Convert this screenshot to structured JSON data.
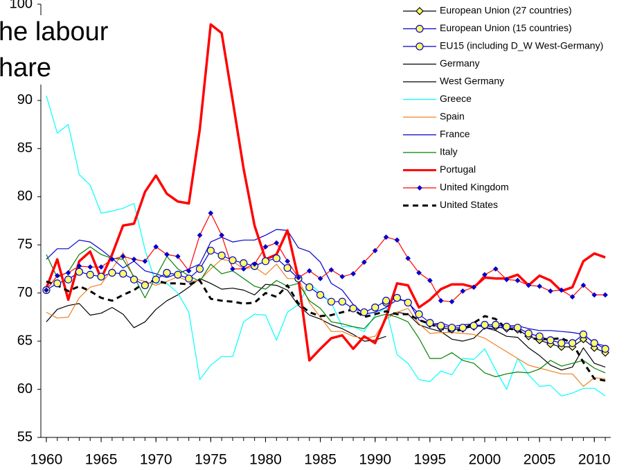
{
  "chart_data": {
    "type": "line",
    "title": [
      "he labour",
      "hare"
    ],
    "x": [
      1960,
      1961,
      1962,
      1963,
      1964,
      1965,
      1966,
      1967,
      1968,
      1969,
      1970,
      1971,
      1972,
      1973,
      1974,
      1975,
      1976,
      1977,
      1978,
      1979,
      1980,
      1981,
      1982,
      1983,
      1984,
      1985,
      1986,
      1987,
      1988,
      1989,
      1990,
      1991,
      1992,
      1993,
      1994,
      1995,
      1996,
      1997,
      1998,
      1999,
      2000,
      2001,
      2002,
      2003,
      2004,
      2005,
      2006,
      2007,
      2008,
      2009,
      2010,
      2011
    ],
    "xlim": [
      1959.5,
      2011.5
    ],
    "xticks": [
      1960,
      1965,
      1970,
      1975,
      1980,
      1985,
      1990,
      1995,
      2000,
      2005,
      2010
    ],
    "ylim": [
      55,
      100
    ],
    "yticks": [
      55,
      60,
      65,
      70,
      75,
      80,
      85,
      90,
      100
    ],
    "series": [
      {
        "name": "European Union (27 countries)",
        "color": "#000000",
        "marker": "diamond",
        "marker_color": "#ffff66",
        "values": [
          null,
          null,
          null,
          null,
          null,
          null,
          null,
          null,
          null,
          null,
          null,
          null,
          null,
          null,
          null,
          null,
          null,
          null,
          null,
          null,
          null,
          null,
          null,
          null,
          null,
          null,
          null,
          null,
          null,
          null,
          null,
          null,
          null,
          null,
          null,
          66.8,
          66.4,
          66.2,
          66.3,
          66.5,
          66.6,
          66.5,
          66.3,
          66.2,
          65.5,
          65.1,
          64.7,
          64.4,
          64.4,
          65.2,
          64.3,
          63.8
        ]
      },
      {
        "name": "European Union (15 countries)",
        "color": "#0000cc",
        "marker": "circle",
        "marker_color": "#ffff66",
        "values": [
          null,
          null,
          null,
          null,
          null,
          null,
          null,
          null,
          null,
          null,
          null,
          null,
          null,
          null,
          null,
          null,
          null,
          null,
          null,
          null,
          null,
          null,
          null,
          null,
          null,
          null,
          null,
          null,
          null,
          null,
          null,
          69,
          69.5,
          69,
          67.8,
          66.9,
          66.6,
          66.4,
          66.4,
          66.6,
          66.7,
          66.7,
          66.5,
          66.4,
          65.8,
          65.5,
          65.1,
          64.8,
          64.8,
          65.7,
          64.8,
          64.2
        ]
      },
      {
        "name": "EU15 (including D_W West-Germany)",
        "color": "#0000cc",
        "marker": "circle",
        "marker_color": "#ffff66",
        "values": [
          70.3,
          71,
          71.4,
          72.2,
          71.9,
          71.7,
          72.1,
          72,
          71.4,
          70.8,
          71.4,
          72.1,
          71.9,
          71.5,
          72.5,
          74.4,
          73.9,
          73.4,
          73.1,
          72.8,
          73.3,
          73.6,
          72.6,
          71.5,
          70.6,
          69.8,
          69.1,
          69.1,
          68.4,
          68,
          68.5,
          69.2,
          null,
          null,
          null,
          null,
          null,
          null,
          null,
          null,
          null,
          null,
          null,
          null,
          null,
          null,
          null,
          null,
          null,
          null,
          null,
          null
        ]
      },
      {
        "name": "Germany",
        "color": "#000000",
        "values": [
          null,
          null,
          null,
          null,
          null,
          null,
          null,
          null,
          null,
          null,
          null,
          null,
          null,
          null,
          null,
          null,
          null,
          null,
          null,
          null,
          null,
          null,
          null,
          null,
          null,
          null,
          null,
          null,
          null,
          null,
          null,
          67.6,
          68,
          67.8,
          66.7,
          66.3,
          66,
          65.2,
          65,
          65.3,
          66.4,
          66.1,
          65.5,
          65.4,
          64.3,
          63.5,
          62.5,
          62,
          62.3,
          64.3,
          62.7,
          62.3
        ]
      },
      {
        "name": "West Germany",
        "color": "#000000",
        "values": [
          67,
          68.3,
          68.7,
          68.9,
          67.7,
          67.9,
          68.5,
          67.8,
          66.4,
          67,
          68.3,
          69.2,
          69.8,
          70.6,
          71.5,
          71,
          70.4,
          70.5,
          70.3,
          69.8,
          70.9,
          70.8,
          70.3,
          68.7,
          67.7,
          67.3,
          66.7,
          66.3,
          65.7,
          65,
          65.1,
          65.5,
          null,
          null,
          null,
          null,
          null,
          null,
          null,
          null,
          null,
          null,
          null,
          null,
          null,
          null,
          null,
          null,
          null,
          null,
          null,
          null
        ]
      },
      {
        "name": "Greece",
        "color": "#00ffff",
        "values": [
          90.5,
          86.6,
          87.5,
          82.3,
          81.2,
          78.3,
          78.5,
          78.8,
          79.3,
          74.5,
          71,
          71,
          70,
          68,
          61,
          62.5,
          63.4,
          63.4,
          67,
          67.8,
          67.7,
          65.1,
          68,
          68.8,
          71,
          70,
          69,
          66.5,
          66.5,
          66,
          67.7,
          68.5,
          63.6,
          62.7,
          61,
          60.8,
          61.9,
          61.5,
          63.2,
          63.1,
          64.2,
          62,
          60,
          63.2,
          61.5,
          60.3,
          60.4,
          59.3,
          59.6,
          60.1,
          60.1,
          59.3
        ]
      },
      {
        "name": "Spain",
        "color": "#f08020",
        "values": [
          68,
          67.4,
          67.5,
          69.5,
          70.6,
          70.9,
          72.5,
          74.2,
          71.5,
          71.2,
          70.8,
          71.2,
          71.7,
          71.2,
          71.3,
          72.5,
          73.5,
          73.3,
          72.5,
          72.7,
          71.9,
          73,
          71.5,
          71.5,
          69,
          67.5,
          66,
          66,
          65.5,
          65.3,
          65.5,
          67.3,
          68,
          68.4,
          66.8,
          65.8,
          65.9,
          65.9,
          65.8,
          65.7,
          65.3,
          64.6,
          63.9,
          63.2,
          62.5,
          62.2,
          61.9,
          61.6,
          61.6,
          60.3,
          61.2,
          61.1
        ]
      },
      {
        "name": "France",
        "color": "#0000cc",
        "values": [
          73.5,
          74.6,
          74.6,
          75.5,
          75.3,
          74.5,
          73.6,
          72.6,
          73.3,
          72.3,
          72,
          71.6,
          72,
          72.5,
          73,
          75.3,
          75.8,
          75.3,
          75.5,
          75.5,
          76,
          76.6,
          76.5,
          74.7,
          74.3,
          73.2,
          71,
          70.3,
          68.8,
          67.8,
          68,
          68.5,
          69.3,
          69.2,
          67.2,
          66.7,
          66.9,
          66.5,
          66.7,
          66.8,
          66.4,
          66.3,
          66.6,
          66.6,
          66.3,
          66.1,
          66.1,
          66,
          65.9,
          65.7,
          64.8,
          64.5
        ]
      },
      {
        "name": "Italy",
        "color": "#008000",
        "values": [
          74,
          71.6,
          72.2,
          74,
          74.8,
          74,
          73.6,
          73.5,
          71.7,
          69.5,
          71.7,
          73.8,
          72.5,
          71.8,
          71.2,
          73,
          72,
          72.3,
          71.5,
          70.7,
          70.4,
          71.3,
          70.7,
          71,
          69.2,
          68.4,
          67,
          66.8,
          66.5,
          66.3,
          67.5,
          67.8,
          67.5,
          67,
          65.3,
          63.2,
          63.2,
          63.8,
          63,
          62.7,
          61.7,
          61.3,
          61.6,
          61.8,
          61.7,
          62.1,
          63,
          62.4,
          62.7,
          63,
          62.2,
          61.7
        ]
      },
      {
        "name": "Portugal",
        "color": "#ff0000",
        "line_width": 3.5,
        "values": [
          70.5,
          73.5,
          69.3,
          73.3,
          74.3,
          71.5,
          74,
          77,
          77.2,
          80.5,
          82.2,
          80.3,
          79.5,
          79.3,
          87,
          97.9,
          97,
          90,
          82.9,
          77,
          73.5,
          74,
          76.5,
          71.5,
          63,
          64.2,
          65.3,
          65.6,
          64.2,
          65.5,
          64.8,
          67.5,
          71,
          70.8,
          68.5,
          69.3,
          70.4,
          70.9,
          70.9,
          70.6,
          71.6,
          71.5,
          71.5,
          71.9,
          70.8,
          71.8,
          71.3,
          70.2,
          70.6,
          73.3,
          74.1,
          73.7
        ]
      },
      {
        "name": "United Kingdom",
        "color": "#ff0000",
        "marker": "small-diamond",
        "marker_color": "#0000cc",
        "values": [
          70.3,
          71.8,
          72.1,
          72.8,
          72.7,
          72.7,
          73.5,
          73.8,
          73.5,
          73.3,
          74.8,
          74,
          73.8,
          72.3,
          76,
          78.3,
          76,
          72.5,
          72.5,
          73,
          74.8,
          75.2,
          73.3,
          71.6,
          72.3,
          71.5,
          72.4,
          71.7,
          72,
          73.2,
          74.4,
          75.8,
          75.5,
          73.6,
          72.1,
          71.3,
          69.2,
          69.1,
          70.2,
          70.6,
          71.9,
          72.5,
          71.4,
          71.3,
          70.8,
          70.7,
          70.2,
          70.3,
          69.6,
          70.8,
          69.8,
          69.8
        ]
      },
      {
        "name": "United States",
        "color": "#000000",
        "line_width": 3,
        "dashed": true,
        "values": [
          71.2,
          70.8,
          70.2,
          70.7,
          70.2,
          69.5,
          69.2,
          69.8,
          70.3,
          71.1,
          71.3,
          71,
          71,
          70.9,
          71.3,
          69.4,
          69.2,
          69.1,
          68.9,
          69,
          70,
          69.6,
          70.8,
          68.9,
          68,
          67.6,
          67.7,
          68,
          68.3,
          67.5,
          67.8,
          68.1,
          67.8,
          67.8,
          67.2,
          66.8,
          66.3,
          66,
          66.2,
          66.9,
          67.6,
          67.3,
          66.3,
          66.2,
          65.3,
          65.2,
          65.2,
          65.3,
          64.8,
          62.8,
          61.1,
          60.9
        ]
      }
    ]
  }
}
